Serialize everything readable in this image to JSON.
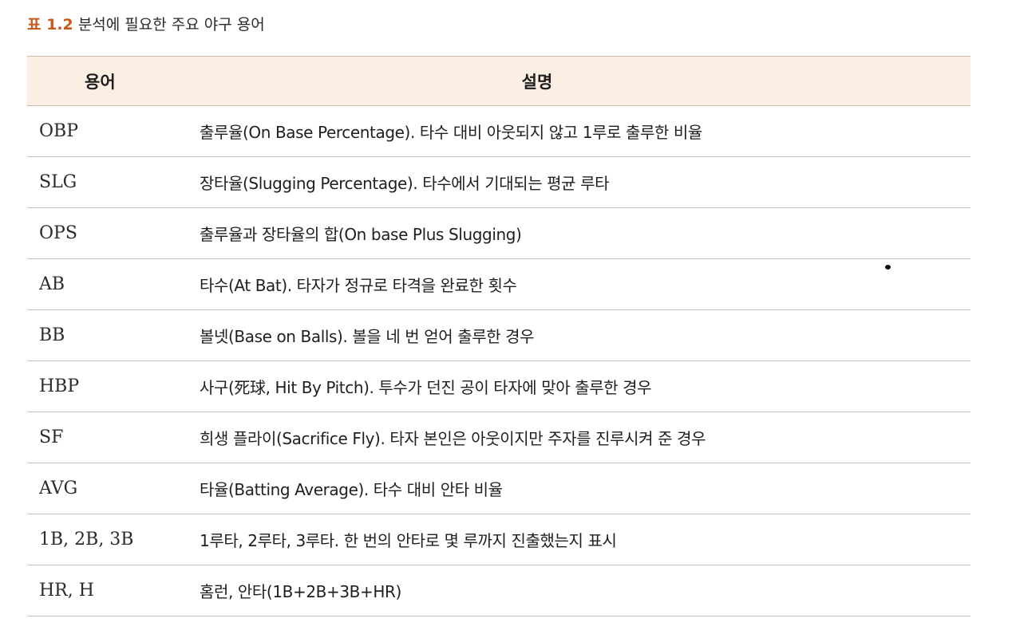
{
  "caption": {
    "label": "표 1.2",
    "text": "분석에 필요한 주요 야구 용어"
  },
  "table": {
    "headers": {
      "term": "용어",
      "description": "설명"
    },
    "rows": [
      {
        "term": "OBP",
        "description": "출루율(On Base Percentage). 타수 대비 아웃되지 않고 1루로 출루한 비율"
      },
      {
        "term": "SLG",
        "description": "장타율(Slugging Percentage). 타수에서 기대되는 평균 루타"
      },
      {
        "term": "OPS",
        "description": "출루율과 장타율의 합(On base Plus Slugging)"
      },
      {
        "term": "AB",
        "description": "타수(At Bat). 타자가 정규로 타격을 완료한 횟수"
      },
      {
        "term": "BB",
        "description": "볼넷(Base on Balls). 볼을 네 번 얻어 출루한 경우"
      },
      {
        "term": "HBP",
        "description": "사구(死球, Hit By Pitch). 투수가 던진 공이 타자에 맞아 출루한 경우"
      },
      {
        "term": "SF",
        "description": "희생 플라이(Sacrifice Fly). 타자 본인은 아웃이지만 주자를 진루시켜 준 경우"
      },
      {
        "term": "AVG",
        "description": "타율(Batting Average). 타수 대비 안타 비율"
      },
      {
        "term": "1B, 2B, 3B",
        "description": "1루타, 2루타, 3루타. 한 번의 안타로 몇 루까지 진출했는지 표시"
      },
      {
        "term": "HR, H",
        "description": "홈런, 안타(1B+2B+3B+HR)"
      }
    ]
  },
  "colors": {
    "caption_label": "#c8581b",
    "header_background": "#fbefe3",
    "rule": "#cbbfb2"
  }
}
